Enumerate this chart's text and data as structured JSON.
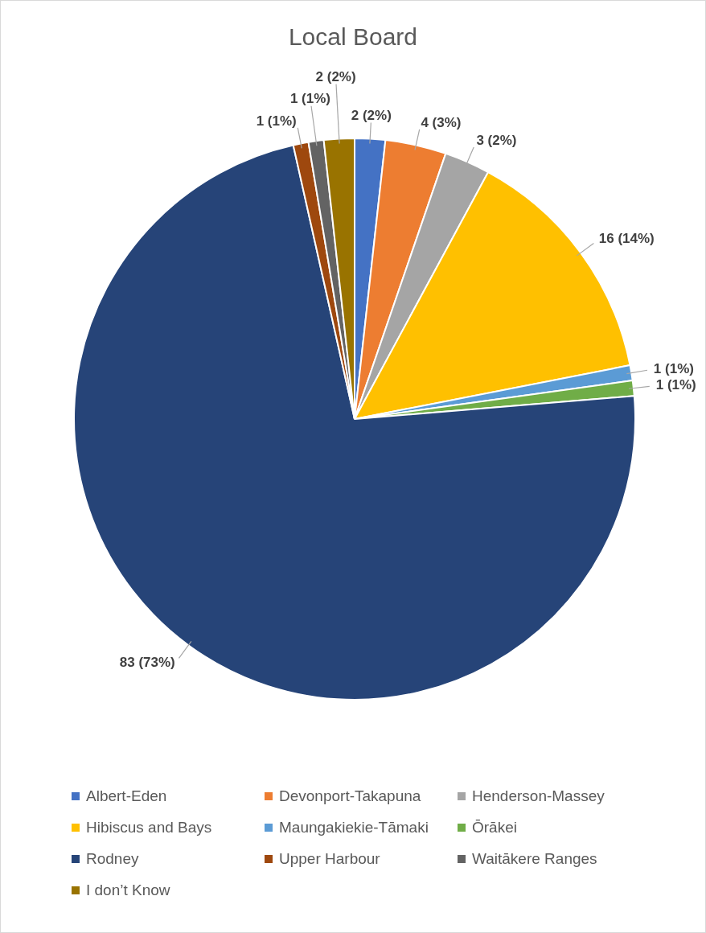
{
  "chart_data": {
    "type": "pie",
    "title": "Local Board",
    "categories": [
      "Albert-Eden",
      "Devonport-Takapuna",
      "Henderson-Massey",
      "Hibiscus and Bays",
      "Maungakiekie-Tāmaki",
      "Ōrākei",
      "Rodney",
      "Upper Harbour",
      "Waitākere Ranges",
      "I don’t Know"
    ],
    "values": [
      2,
      4,
      3,
      16,
      1,
      1,
      83,
      1,
      1,
      2
    ],
    "colors": [
      "#4472c4",
      "#ed7d31",
      "#a5a5a5",
      "#ffc000",
      "#5b9bd5",
      "#70ad47",
      "#264478",
      "#9e480e",
      "#636363",
      "#997300"
    ],
    "value_labels": [
      "2 (2%)",
      "4 (3%)",
      "3 (2%)",
      "16 (14%)",
      "1 (1%)",
      "1 (1%)",
      "83 (73%)",
      "1 (1%)",
      "1 (1%)",
      "2 (2%)"
    ],
    "legend": "bottom"
  }
}
